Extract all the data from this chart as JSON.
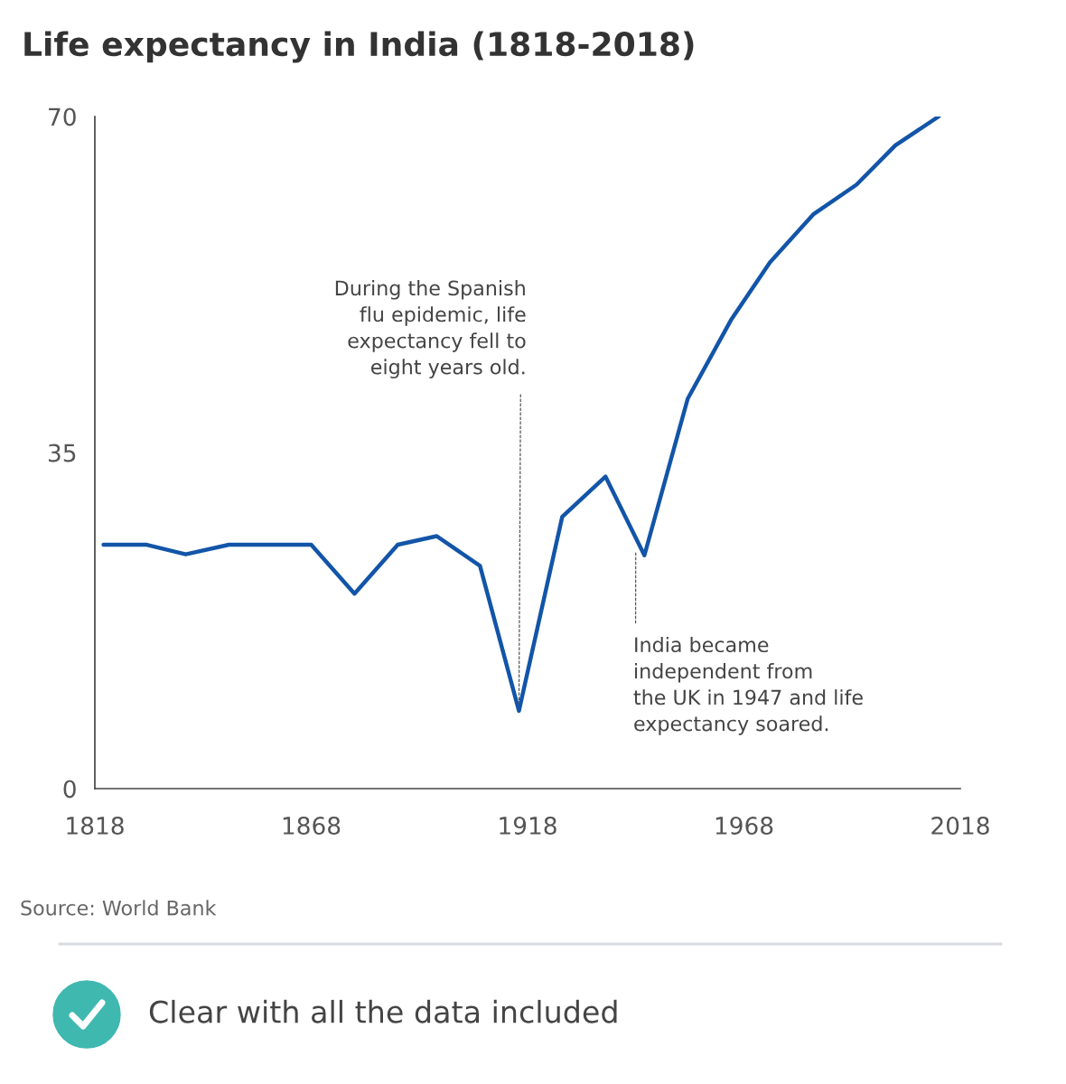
{
  "chart_data": {
    "type": "line",
    "title": "Life expectancy in India (1818-2018)",
    "x": [
      1820,
      1830,
      1839,
      1849,
      1859,
      1868,
      1878,
      1888,
      1897,
      1907,
      1916,
      1926,
      1936,
      1945,
      1955,
      1965,
      1974,
      1984,
      1994,
      2003,
      2013
    ],
    "series": [
      {
        "color": "#1255a8",
        "values": [
          25.4,
          25.4,
          24.4,
          25.4,
          25.4,
          25.4,
          20.3,
          25.4,
          26.3,
          23.2,
          8.1,
          28.3,
          32.5,
          24.3,
          40.6,
          48.8,
          54.8,
          59.8,
          62.9,
          67.0,
          70
        ]
      }
    ],
    "xlim": [
      1818,
      2018
    ],
    "xticks": [
      1818,
      1868,
      1918,
      1968,
      2018
    ],
    "ylim": [
      0,
      70
    ],
    "yticks": [
      0,
      35,
      70
    ],
    "grid": false,
    "marker": "none",
    "line_style": "solid",
    "annotations": [
      {
        "text": "During the Spanish\nflu epidemic, life\nexpectancy fell to\neight years old.",
        "x": 1916,
        "y": 8.1
      },
      {
        "text": "India became\nindependent from\nthe UK in 1947 and life\nexpectancy soared.",
        "x": 1943,
        "y": 24.7
      },
      "Source: World Bank",
      "Clear with all the data included"
    ]
  }
}
